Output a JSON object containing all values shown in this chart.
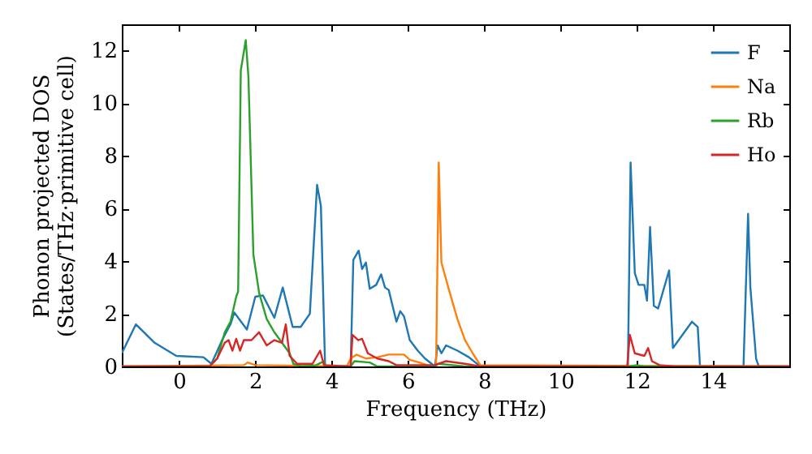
{
  "chart_data": {
    "type": "line",
    "xlabel": "Frequency (THz)",
    "ylabel": "Phonon projected DOS\n(States/THz·primitive cell)",
    "xlim": [
      -1.5,
      16
    ],
    "ylim": [
      0,
      13
    ],
    "xticks": [
      0,
      2,
      4,
      6,
      8,
      10,
      12,
      14
    ],
    "yticks": [
      0,
      2,
      4,
      6,
      8,
      10,
      12
    ],
    "grid": false,
    "legend": "top right",
    "series": [
      {
        "name": "F",
        "color": "#1f77b4",
        "x": [
          -1.5,
          -1.13,
          -0.64,
          -0.07,
          0.64,
          0.85,
          1.13,
          1.35,
          1.45,
          1.78,
          2.0,
          2.2,
          2.5,
          2.72,
          2.98,
          3.19,
          3.43,
          3.62,
          3.72,
          3.83,
          4.5,
          4.57,
          4.71,
          4.8,
          4.9,
          5.0,
          5.17,
          5.3,
          5.4,
          5.5,
          5.7,
          5.8,
          5.9,
          6.05,
          6.26,
          6.45,
          6.71,
          6.78,
          6.88,
          7.0,
          7.3,
          7.6,
          7.9,
          11.7,
          11.77,
          11.84,
          11.95,
          12.05,
          12.2,
          12.27,
          12.35,
          12.45,
          12.56,
          12.85,
          12.95,
          13.45,
          13.6,
          13.66,
          14.8,
          14.92,
          14.98,
          15.13,
          15.2,
          16
        ],
        "values": [
          0.5,
          1.6,
          0.9,
          0.4,
          0.35,
          0.1,
          1.0,
          1.6,
          2.05,
          1.4,
          2.65,
          2.7,
          1.85,
          3.0,
          1.5,
          1.5,
          2.0,
          6.9,
          6.1,
          0,
          0,
          4.05,
          4.4,
          3.7,
          3.95,
          2.95,
          3.1,
          3.5,
          3.0,
          2.9,
          1.7,
          2.1,
          1.9,
          1.0,
          0.6,
          0.3,
          0,
          0.8,
          0.5,
          0.8,
          0.6,
          0.35,
          0,
          0,
          0,
          7.75,
          3.55,
          3.1,
          3.1,
          2.5,
          5.3,
          2.3,
          2.2,
          3.65,
          0.7,
          1.7,
          1.5,
          0,
          0,
          5.8,
          3.0,
          0.3,
          0,
          0
        ]
      },
      {
        "name": "Na",
        "color": "#ff7f0e",
        "x": [
          -1.5,
          1.7,
          1.8,
          2.0,
          4.4,
          4.5,
          4.65,
          4.9,
          5.2,
          5.5,
          5.9,
          6.05,
          6.3,
          6.6,
          6.74,
          6.81,
          6.88,
          7.1,
          7.3,
          7.5,
          7.7,
          7.9,
          16
        ],
        "values": [
          0,
          0.05,
          0.15,
          0.05,
          0,
          0.3,
          0.45,
          0.3,
          0.35,
          0.45,
          0.45,
          0.25,
          0.15,
          0,
          0,
          7.75,
          3.95,
          2.8,
          1.8,
          1.0,
          0.5,
          0.05,
          0
        ]
      },
      {
        "name": "Rb",
        "color": "#2ca02c",
        "x": [
          -1.5,
          0.8,
          1.0,
          1.2,
          1.35,
          1.5,
          1.55,
          1.62,
          1.75,
          1.82,
          1.95,
          2.1,
          2.3,
          2.5,
          2.8,
          2.9,
          3.0,
          3.2,
          3.6,
          3.8,
          3.85,
          4.5,
          4.6,
          5.0,
          5.2,
          6.7,
          6.8,
          7.5,
          11.8,
          12.0,
          12.2,
          16
        ],
        "values": [
          0,
          0,
          0.3,
          1.3,
          1.7,
          2.65,
          2.85,
          11.25,
          12.4,
          11.0,
          4.25,
          2.8,
          1.8,
          1.3,
          0.7,
          0.5,
          0.1,
          0,
          0.05,
          0.2,
          0,
          0,
          0.2,
          0.15,
          0,
          0,
          0.1,
          0,
          0,
          0.05,
          0,
          0
        ]
      },
      {
        "name": "Ho",
        "color": "#d62728",
        "x": [
          -1.5,
          0.8,
          1.0,
          1.2,
          1.3,
          1.4,
          1.5,
          1.6,
          1.7,
          1.9,
          2.1,
          2.3,
          2.5,
          2.7,
          2.8,
          2.9,
          3.1,
          3.5,
          3.7,
          3.8,
          4.5,
          4.55,
          4.7,
          4.8,
          4.95,
          5.2,
          5.5,
          5.7,
          6.7,
          7.0,
          7.5,
          7.9,
          11.75,
          11.82,
          11.95,
          12.2,
          12.3,
          12.4,
          12.6,
          13,
          16
        ],
        "values": [
          0,
          0,
          0.3,
          0.9,
          1.0,
          0.6,
          1.05,
          0.6,
          1.0,
          1.0,
          1.3,
          0.8,
          1.0,
          0.9,
          1.6,
          0.4,
          0.1,
          0.1,
          0.6,
          0.05,
          0,
          1.2,
          1.0,
          1.05,
          0.5,
          0.3,
          0.2,
          0.05,
          0.05,
          0.2,
          0.1,
          0,
          0,
          1.2,
          0.5,
          0.4,
          0.7,
          0.2,
          0.05,
          0,
          0
        ]
      }
    ]
  }
}
